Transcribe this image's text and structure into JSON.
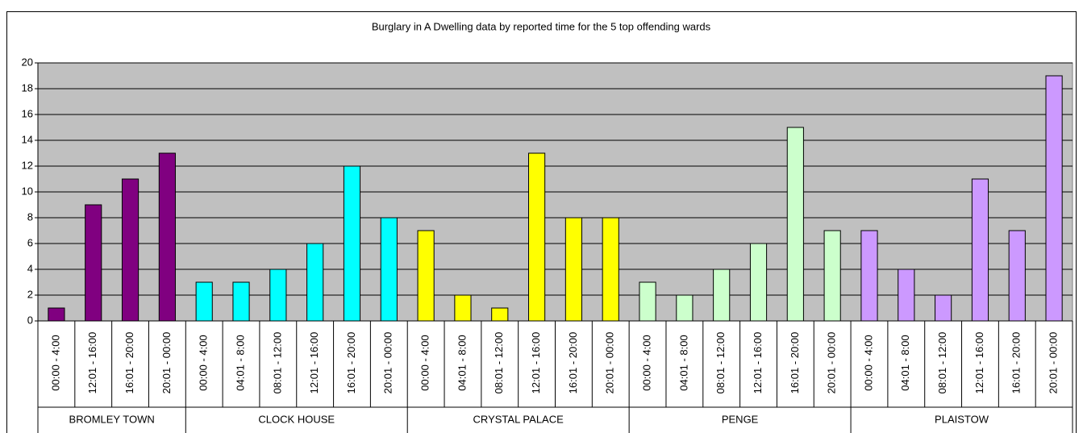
{
  "chart_data": {
    "type": "bar",
    "title": "Burglary in A Dwelling data by reported time for the 5 top offending wards",
    "groups": [
      {
        "name": "BROMLEY TOWN",
        "color": "#800080",
        "categories": [
          "00:00 - 4:00",
          "12:01 - 16:00",
          "16:01 - 20:00",
          "20:01 - 00:00"
        ],
        "values": [
          1,
          9,
          11,
          13
        ]
      },
      {
        "name": "CLOCK HOUSE",
        "color": "#00ffff",
        "categories": [
          "00:00 - 4:00",
          "04:01 - 8:00",
          "08:01 - 12:00",
          "12:01 - 16:00",
          "16:01 - 20:00",
          "20:01 - 00:00"
        ],
        "values": [
          3,
          3,
          4,
          6,
          12,
          8
        ]
      },
      {
        "name": "CRYSTAL PALACE",
        "color": "#ffff00",
        "categories": [
          "00:00 - 4:00",
          "04:01 - 8:00",
          "08:01 - 12:00",
          "12:01 - 16:00",
          "16:01 - 20:00",
          "20:01 - 00:00"
        ],
        "values": [
          7,
          2,
          1,
          13,
          8,
          8
        ]
      },
      {
        "name": "PENGE",
        "color": "#ccffcc",
        "categories": [
          "00:00 - 4:00",
          "04:01 - 8:00",
          "08:01 - 12:00",
          "12:01 - 16:00",
          "16:01 - 20:00",
          "20:01 - 00:00"
        ],
        "values": [
          3,
          2,
          4,
          6,
          15,
          7
        ]
      },
      {
        "name": "PLAISTOW",
        "color": "#cc99ff",
        "categories": [
          "00:00 - 4:00",
          "04:01 - 8:00",
          "08:01 - 12:00",
          "12:01 - 16:00",
          "16:01 - 20:00",
          "20:01 - 00:00"
        ],
        "values": [
          7,
          4,
          2,
          11,
          7,
          19
        ]
      }
    ],
    "ylim": [
      0,
      20
    ],
    "yticks": [
      0,
      2,
      4,
      6,
      8,
      10,
      12,
      14,
      16,
      18,
      20
    ],
    "grid": true
  }
}
